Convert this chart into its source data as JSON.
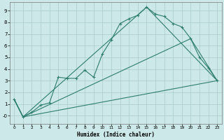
{
  "xlabel": "Humidex (Indice chaleur)",
  "background_color": "#cce8e8",
  "grid_color": "#aacccc",
  "line_color": "#2e7d6e",
  "xlim": [
    -0.5,
    23.5
  ],
  "ylim": [
    -0.7,
    9.7
  ],
  "xticks": [
    0,
    1,
    2,
    3,
    4,
    5,
    6,
    7,
    8,
    9,
    10,
    11,
    12,
    13,
    14,
    15,
    16,
    17,
    18,
    19,
    20,
    21,
    22,
    23
  ],
  "yticks": [
    0,
    1,
    2,
    3,
    4,
    5,
    6,
    7,
    8,
    9
  ],
  "series1_x": [
    0,
    1,
    2,
    3,
    4,
    5,
    6,
    7,
    8,
    9,
    10,
    11,
    12,
    13,
    14,
    15,
    16,
    17,
    18,
    19,
    20,
    21,
    22,
    23
  ],
  "series1_y": [
    1.4,
    -0.1,
    0.3,
    0.9,
    1.1,
    3.3,
    3.2,
    3.2,
    3.9,
    3.3,
    5.3,
    6.5,
    7.9,
    8.3,
    8.6,
    9.3,
    8.7,
    8.5,
    7.9,
    7.6,
    6.6,
    5.0,
    4.1,
    3.0
  ],
  "series2_x": [
    0,
    1,
    23
  ],
  "series2_y": [
    1.4,
    -0.1,
    3.0
  ],
  "series3_x": [
    0,
    1,
    20,
    23
  ],
  "series3_y": [
    1.4,
    -0.1,
    6.6,
    3.0
  ],
  "series4_x": [
    0,
    1,
    15,
    23
  ],
  "series4_y": [
    1.4,
    -0.1,
    9.3,
    3.0
  ]
}
